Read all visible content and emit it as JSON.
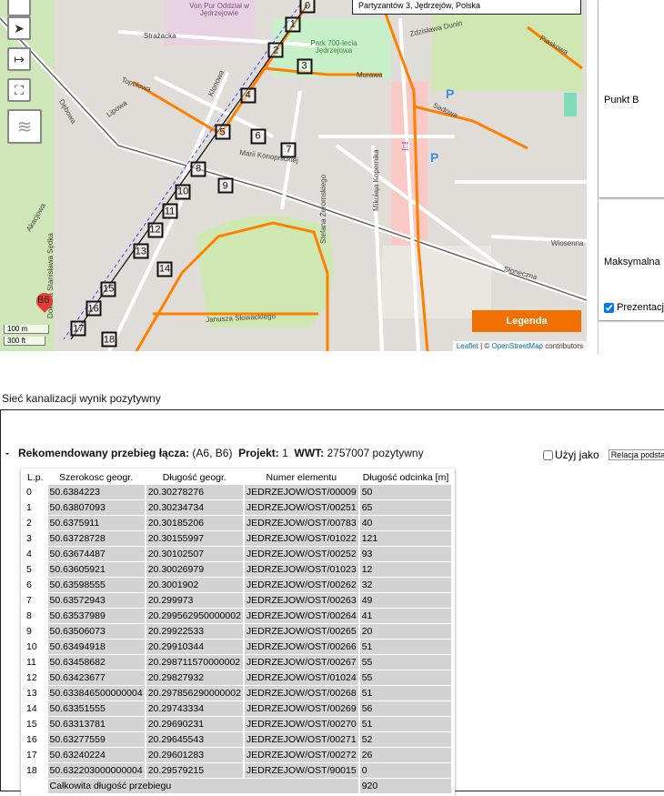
{
  "map": {
    "address": "Partyzantów 3, Jędrzejów, Polska",
    "legend_button": "Legenda",
    "attribution": {
      "leaflet": "Leaflet",
      "sep": " | © ",
      "osm": "OpenStreetMap",
      "suffix": " contributors"
    },
    "scale": {
      "metric": "100 m",
      "imperial": "300 ft"
    },
    "pin_label": "B6",
    "street_labels": [
      "Strażacka",
      "Topolowa",
      "Lipowa",
      "Klonowa",
      "Partyzantów",
      "Marii Konopnickiej",
      "Stefana Żeromskiego",
      "Mikołaja Kopernika",
      "Murawa",
      "Park 700-lecia Jędrzejowa",
      "Zdzisława Dunin",
      "Słoneczna",
      "Wiosenna",
      "Dębowa",
      "Doktora Stanisława Sędka",
      "Akacjowa",
      "Janusza Słowackiego",
      "Sadowa",
      "Piaskowa",
      "Von Pur Oddział w Jędrzejowie"
    ],
    "controls": [
      "locate-icon",
      "measure-icon",
      "fullscreen-icon",
      "layers-icon"
    ],
    "colors": {
      "network": "#ff7f00",
      "route": "#000000",
      "legend": "#f07000",
      "pin": "#e53b35"
    }
  },
  "panel": {
    "punkt_b": "Punkt B",
    "maksymalna": "Maksymalna",
    "prezentacja": "Prezentacj",
    "prezentacja_checked": true
  },
  "section_title": "Sieć kanalizacji wynik pozytywny",
  "result": {
    "collapse": "-",
    "label": "Rekomendowany przebieg łącza:",
    "pair": "(A6, B6)",
    "projekt_label": "Projekt:",
    "projekt": "1",
    "wwt_label": "WWT:",
    "wwt": "2757007 pozytywny",
    "use_as": "Użyj jako",
    "use_as_checked": false,
    "relation": "Relacja podsta",
    "columns": [
      "L.p.",
      "Szerokosc geogr.",
      "Długość geogr.",
      "Numer elementu",
      "Długość odcinka [m]"
    ],
    "rows": [
      [
        "0",
        "50.6384223",
        "20.30278276",
        "JEDRZEJOW/OST/00009",
        "50"
      ],
      [
        "1",
        "50.63807093",
        "20.30234734",
        "JEDRZEJOW/OST/00251",
        "65"
      ],
      [
        "2",
        "50.6375911",
        "20.30185206",
        "JEDRZEJOW/OST/00783",
        "40"
      ],
      [
        "3",
        "50.63728728",
        "20.30155997",
        "JEDRZEJOW/OST/01022",
        "121"
      ],
      [
        "4",
        "50.63674487",
        "20.30102507",
        "JEDRZEJOW/OST/00252",
        "93"
      ],
      [
        "5",
        "50.63605921",
        "20.30026979",
        "JEDRZEJOW/OST/01023",
        "12"
      ],
      [
        "6",
        "50.63598555",
        "20.3001902",
        "JEDRZEJOW/OST/00262",
        "32"
      ],
      [
        "7",
        "50.63572943",
        "20.299973",
        "JEDRZEJOW/OST/00263",
        "49"
      ],
      [
        "8",
        "50.63537989",
        "20.299562950000002",
        "JEDRZEJOW/OST/00264",
        "41"
      ],
      [
        "9",
        "50.63506073",
        "20.29922533",
        "JEDRZEJOW/OST/00265",
        "20"
      ],
      [
        "10",
        "50.63494918",
        "20.29910344",
        "JEDRZEJOW/OST/00266",
        "51"
      ],
      [
        "11",
        "50.63458682",
        "20.298711570000002",
        "JEDRZEJOW/OST/00267",
        "55"
      ],
      [
        "12",
        "50.63423677",
        "20.29827932",
        "JEDRZEJOW/OST/01024",
        "55"
      ],
      [
        "13",
        "50.633846500000004",
        "20.297856290000002",
        "JEDRZEJOW/OST/00268",
        "51"
      ],
      [
        "14",
        "50.63351555",
        "20.29743334",
        "JEDRZEJOW/OST/00269",
        "56"
      ],
      [
        "15",
        "50.63313781",
        "20.29690231",
        "JEDRZEJOW/OST/00270",
        "51"
      ],
      [
        "16",
        "50.63277559",
        "20.29645543",
        "JEDRZEJOW/OST/00271",
        "52"
      ],
      [
        "17",
        "50.63240224",
        "20.29601283",
        "JEDRZEJOW/OST/00272",
        "26"
      ],
      [
        "18",
        "50.632203000000004",
        "20.29579215",
        "JEDRZEJOW/OST/90015",
        "0"
      ]
    ],
    "total_label": "Całkowita długość przebiegu",
    "total": "920"
  }
}
